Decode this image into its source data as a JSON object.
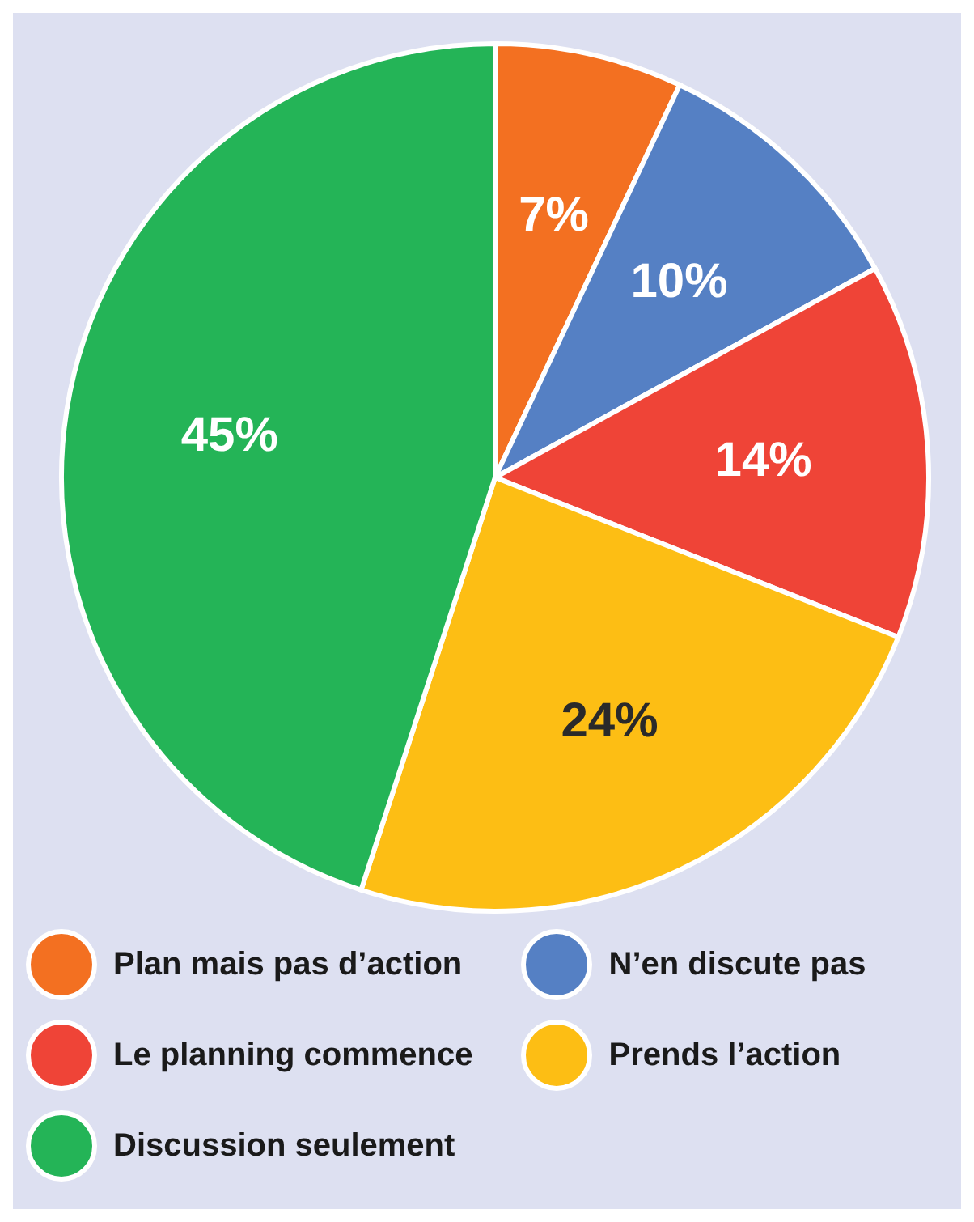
{
  "chart_data": {
    "type": "pie",
    "categories": [
      "Plan mais pas d’action",
      "N’en discute pas",
      "Le planning commence",
      "Prends l’action",
      "Discussion seulement"
    ],
    "values": [
      7,
      10,
      14,
      24,
      45
    ],
    "colors": [
      "#f37021",
      "#5580c4",
      "#ef4437",
      "#fdbe14",
      "#24b457"
    ],
    "value_labels": [
      "7%",
      "10%",
      "14%",
      "24%",
      "45%"
    ],
    "legend": "bottom"
  }
}
